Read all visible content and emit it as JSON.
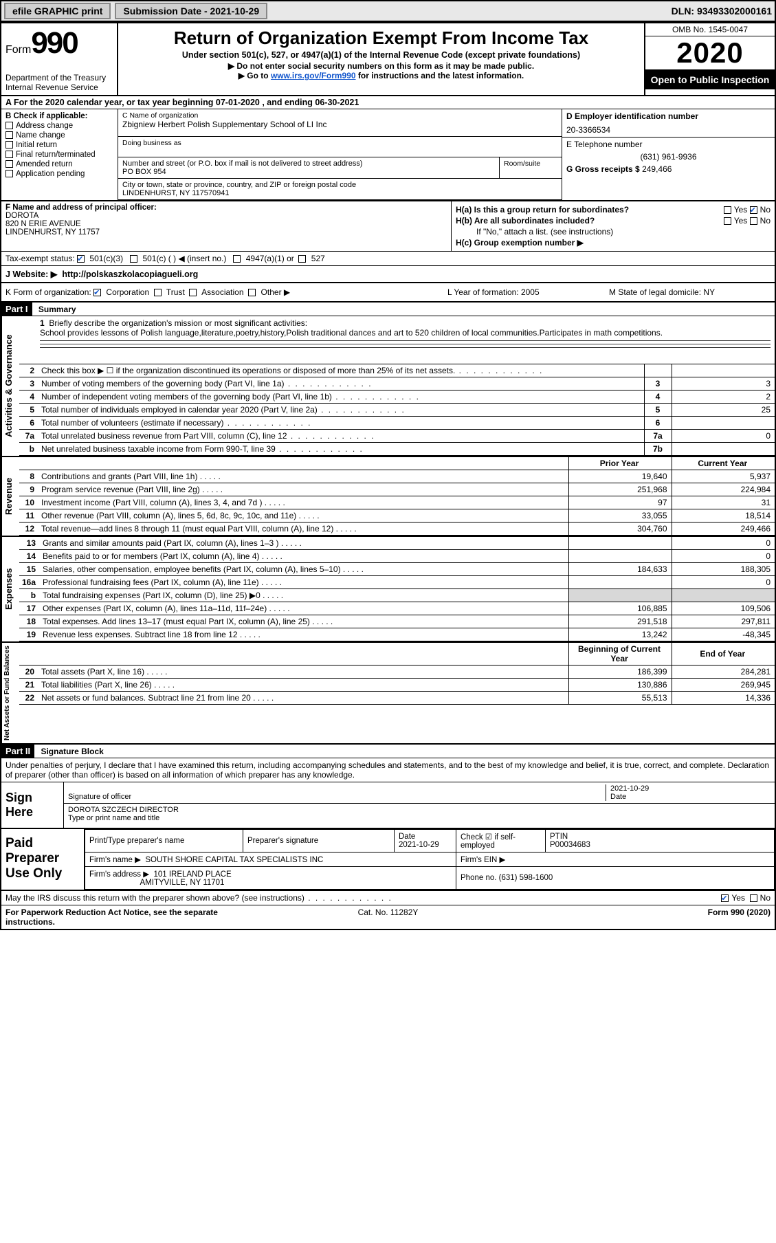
{
  "topbar": {
    "efile": "efile GRAPHIC print",
    "submission": "Submission Date - 2021-10-29",
    "dln": "DLN: 93493302000161"
  },
  "header": {
    "form_word": "Form",
    "form_num": "990",
    "dept": "Department of the Treasury",
    "irs": "Internal Revenue Service",
    "title": "Return of Organization Exempt From Income Tax",
    "sub1": "Under section 501(c), 527, or 4947(a)(1) of the Internal Revenue Code (except private foundations)",
    "sub2": "▶ Do not enter social security numbers on this form as it may be made public.",
    "sub3_pre": "▶ Go to ",
    "sub3_link": "www.irs.gov/Form990",
    "sub3_post": " for instructions and the latest information.",
    "omb": "OMB No. 1545-0047",
    "year": "2020",
    "open": "Open to Public Inspection"
  },
  "rowA": "A For the 2020 calendar year, or tax year beginning 07-01-2020    , and ending 06-30-2021",
  "colB": {
    "lbl": "B Check if applicable:",
    "items": [
      "Address change",
      "Name change",
      "Initial return",
      "Final return/terminated",
      "Amended return",
      "Application pending"
    ]
  },
  "nameBlock": {
    "c_lbl": "C Name of organization",
    "c_name": "Zbigniew Herbert Polish Supplementary School of LI Inc",
    "dba_lbl": "Doing business as",
    "addr_lbl": "Number and street (or P.O. box if mail is not delivered to street address)",
    "addr": "PO BOX 954",
    "room_lbl": "Room/suite",
    "city_lbl": "City or town, state or province, country, and ZIP or foreign postal code",
    "city": "LINDENHURST, NY  117570941",
    "d_lbl": "D Employer identification number",
    "ein": "20-3366534",
    "e_lbl": "E Telephone number",
    "phone": "(631) 961-9936",
    "g_lbl": "G Gross receipts $",
    "g_val": "249,466"
  },
  "f": {
    "lbl": "F Name and address of principal officer:",
    "name": "DOROTA",
    "addr1": "820 N ERIE AVENUE",
    "addr2": "LINDENHURST, NY  11757",
    "ha": "H(a)  Is this a group return for subordinates?",
    "hb": "H(b)  Are all subordinates included?",
    "hb_note": "If \"No,\" attach a list. (see instructions)",
    "hc": "H(c)  Group exemption number ▶",
    "yes": "Yes",
    "no": "No"
  },
  "tax": {
    "lbl": "Tax-exempt status:",
    "c3": "501(c)(3)",
    "c": "501(c) (  ) ◀ (insert no.)",
    "a1": "4947(a)(1) or",
    "s527": "527"
  },
  "web": {
    "lbl": "J   Website: ▶",
    "url": "http://polskaszkolacopiagueli.org"
  },
  "k": {
    "lbl": "K Form of organization:",
    "corp": "Corporation",
    "trust": "Trust",
    "assoc": "Association",
    "other": "Other ▶",
    "l": "L Year of formation: 2005",
    "m": "M State of legal domicile: NY"
  },
  "part1": {
    "tag": "Part I",
    "title": "Summary"
  },
  "part2": {
    "tag": "Part II",
    "title": "Signature Block"
  },
  "q1": {
    "num": "1",
    "lbl": "Briefly describe the organization's mission or most significant activities:",
    "text": "School provides lessons of Polish language,literature,poetry,history,Polish traditional dances and art to 520 children of local communities.Participates in math competitions."
  },
  "gov_lines": [
    {
      "n": "2",
      "l": "Check this box ▶ ☐  if the organization discontinued its operations or disposed of more than 25% of its net assets.",
      "box": "",
      "v": ""
    },
    {
      "n": "3",
      "l": "Number of voting members of the governing body (Part VI, line 1a)",
      "box": "3",
      "v": "3"
    },
    {
      "n": "4",
      "l": "Number of independent voting members of the governing body (Part VI, line 1b)",
      "box": "4",
      "v": "2"
    },
    {
      "n": "5",
      "l": "Total number of individuals employed in calendar year 2020 (Part V, line 2a)",
      "box": "5",
      "v": "25"
    },
    {
      "n": "6",
      "l": "Total number of volunteers (estimate if necessary)",
      "box": "6",
      "v": ""
    },
    {
      "n": "7a",
      "l": "Total unrelated business revenue from Part VIII, column (C), line 12",
      "box": "7a",
      "v": "0"
    },
    {
      "n": "b",
      "l": "Net unrelated business taxable income from Form 990-T, line 39",
      "box": "7b",
      "v": ""
    }
  ],
  "rev_hdr": {
    "py": "Prior Year",
    "cy": "Current Year"
  },
  "rev_lines": [
    {
      "n": "8",
      "l": "Contributions and grants (Part VIII, line 1h)",
      "py": "19,640",
      "cy": "5,937"
    },
    {
      "n": "9",
      "l": "Program service revenue (Part VIII, line 2g)",
      "py": "251,968",
      "cy": "224,984"
    },
    {
      "n": "10",
      "l": "Investment income (Part VIII, column (A), lines 3, 4, and 7d )",
      "py": "97",
      "cy": "31"
    },
    {
      "n": "11",
      "l": "Other revenue (Part VIII, column (A), lines 5, 6d, 8c, 9c, 10c, and 11e)",
      "py": "33,055",
      "cy": "18,514"
    },
    {
      "n": "12",
      "l": "Total revenue—add lines 8 through 11 (must equal Part VIII, column (A), line 12)",
      "py": "304,760",
      "cy": "249,466"
    }
  ],
  "exp_lines": [
    {
      "n": "13",
      "l": "Grants and similar amounts paid (Part IX, column (A), lines 1–3 )",
      "py": "",
      "cy": "0"
    },
    {
      "n": "14",
      "l": "Benefits paid to or for members (Part IX, column (A), line 4)",
      "py": "",
      "cy": "0"
    },
    {
      "n": "15",
      "l": "Salaries, other compensation, employee benefits (Part IX, column (A), lines 5–10)",
      "py": "184,633",
      "cy": "188,305"
    },
    {
      "n": "16a",
      "l": "Professional fundraising fees (Part IX, column (A), line 11e)",
      "py": "",
      "cy": "0"
    },
    {
      "n": "b",
      "l": "Total fundraising expenses (Part IX, column (D), line 25) ▶0",
      "py": "shade",
      "cy": "shade"
    },
    {
      "n": "17",
      "l": "Other expenses (Part IX, column (A), lines 11a–11d, 11f–24e)",
      "py": "106,885",
      "cy": "109,506"
    },
    {
      "n": "18",
      "l": "Total expenses. Add lines 13–17 (must equal Part IX, column (A), line 25)",
      "py": "291,518",
      "cy": "297,811"
    },
    {
      "n": "19",
      "l": "Revenue less expenses. Subtract line 18 from line 12",
      "py": "13,242",
      "cy": "-48,345"
    }
  ],
  "na_hdr": {
    "b": "Beginning of Current Year",
    "e": "End of Year"
  },
  "na_lines": [
    {
      "n": "20",
      "l": "Total assets (Part X, line 16)",
      "py": "186,399",
      "cy": "284,281"
    },
    {
      "n": "21",
      "l": "Total liabilities (Part X, line 26)",
      "py": "130,886",
      "cy": "269,945"
    },
    {
      "n": "22",
      "l": "Net assets or fund balances. Subtract line 21 from line 20",
      "py": "55,513",
      "cy": "14,336"
    }
  ],
  "sides": {
    "gov": "Activities & Governance",
    "rev": "Revenue",
    "exp": "Expenses",
    "na": "Net Assets or Fund Balances"
  },
  "penalty": "Under penalties of perjury, I declare that I have examined this return, including accompanying schedules and statements, and to the best of my knowledge and belief, it is true, correct, and complete. Declaration of preparer (other than officer) is based on all information of which preparer has any knowledge.",
  "sign": {
    "title": "Sign Here",
    "sig_lbl": "Signature of officer",
    "date_lbl": "Date",
    "date": "2021-10-29",
    "name": "DOROTA SZCZECH  DIRECTOR",
    "name_lbl": "Type or print name and title"
  },
  "paid": {
    "title": "Paid Preparer Use Only",
    "pt_lbl": "Print/Type preparer's name",
    "ps_lbl": "Preparer's signature",
    "d_lbl": "Date",
    "d": "2021-10-29",
    "se_lbl": "Check ☑ if self-employed",
    "ptin_lbl": "PTIN",
    "ptin": "P00034683",
    "fn_lbl": "Firm's name    ▶",
    "fn": "SOUTH SHORE CAPITAL TAX SPECIALISTS INC",
    "fein_lbl": "Firm's EIN ▶",
    "fa_lbl": "Firm's address ▶",
    "fa1": "101 IRELAND PLACE",
    "fa2": "AMITYVILLE, NY  11701",
    "ph_lbl": "Phone no.",
    "ph": "(631) 598-1600"
  },
  "discuss": "May the IRS discuss this return with the preparer shown above? (see instructions)",
  "footer": {
    "l": "For Paperwork Reduction Act Notice, see the separate instructions.",
    "m": "Cat. No. 11282Y",
    "r": "Form 990 (2020)"
  }
}
